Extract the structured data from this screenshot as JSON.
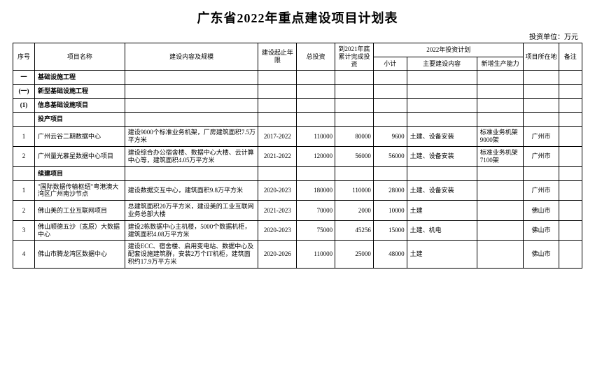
{
  "title": "广东省2022年重点建设项目计划表",
  "unit_label": "投资单位：万元",
  "headers": {
    "seq": "序号",
    "name": "项目名称",
    "desc": "建设内容及规模",
    "period": "建设起止年限",
    "total_inv": "总投资",
    "done_2021": "到2021年底累计完成投资",
    "plan_2022": "2022年投资计划",
    "subtotal": "小计",
    "main_content": "主要建设内容",
    "new_capacity": "新增生产能力",
    "location": "项目所在地",
    "remark": "备注"
  },
  "sections": [
    {
      "idx": "一",
      "label": "基础设施工程",
      "bold": true
    },
    {
      "idx": "(一)",
      "label": "新型基础设施工程",
      "bold": true
    },
    {
      "idx": "(1)",
      "label": "信息基础设施项目",
      "bold": true
    },
    {
      "idx": "",
      "label": "投产项目",
      "bold": true
    }
  ],
  "rows1": [
    {
      "idx": "1",
      "name": "广州云谷二期数据中心",
      "desc": "建设9000个标准业务机架，厂房建筑面积7.5万平方米",
      "period": "2017-2022",
      "total": "110000",
      "done": "80000",
      "sub": "9600",
      "plan": "土建、设备安装",
      "cap": "标准业务机架9000架",
      "loc": "广州市"
    },
    {
      "idx": "2",
      "name": "广州量光慕星数据中心项目",
      "desc": "建设综合办公宿舍楼、数据中心大楼、云计算中心等，建筑面积4.05万平方米",
      "period": "2021-2022",
      "total": "120000",
      "done": "56000",
      "sub": "56000",
      "plan": "土建、设备安装",
      "cap": "标准业务机架7100架",
      "loc": "广州市"
    }
  ],
  "section_cont": {
    "idx": "",
    "label": "续建项目",
    "bold": true
  },
  "rows2": [
    {
      "idx": "1",
      "name": "\"国际数据传输枢纽\"粤港澳大湾区广州南沙节点",
      "desc": "建设数据交互中心，建筑面积9.8万平方米",
      "period": "2020-2023",
      "total": "180000",
      "done": "110000",
      "sub": "28000",
      "plan": "土建、设备安装",
      "cap": "",
      "loc": "广州市"
    },
    {
      "idx": "2",
      "name": "佛山美的工业互联网项目",
      "desc": "总建筑面积20万平方米，建设美的工业互联网业务总部大楼",
      "period": "2021-2023",
      "total": "70000",
      "done": "2000",
      "sub": "10000",
      "plan": "土建",
      "cap": "",
      "loc": "佛山市"
    },
    {
      "idx": "3",
      "name": "佛山顺德五沙（宽原）大数据中心",
      "desc": "建设2栋数据中心主机楼，5000个数据机柜，建筑面积4.08万平方米",
      "period": "2020-2023",
      "total": "75000",
      "done": "45256",
      "sub": "15000",
      "plan": "土建、机电",
      "cap": "",
      "loc": "佛山市"
    },
    {
      "idx": "4",
      "name": "佛山市腾龙湾区数据中心",
      "desc": "建设ECC、宿舍楼、启用变电站、数据中心及配套设施建筑群，安装2万个IT机柜，建筑面积约17.9万平方米",
      "period": "2020-2026",
      "total": "110000",
      "done": "25000",
      "sub": "48000",
      "plan": "土建",
      "cap": "",
      "loc": "佛山市"
    }
  ]
}
